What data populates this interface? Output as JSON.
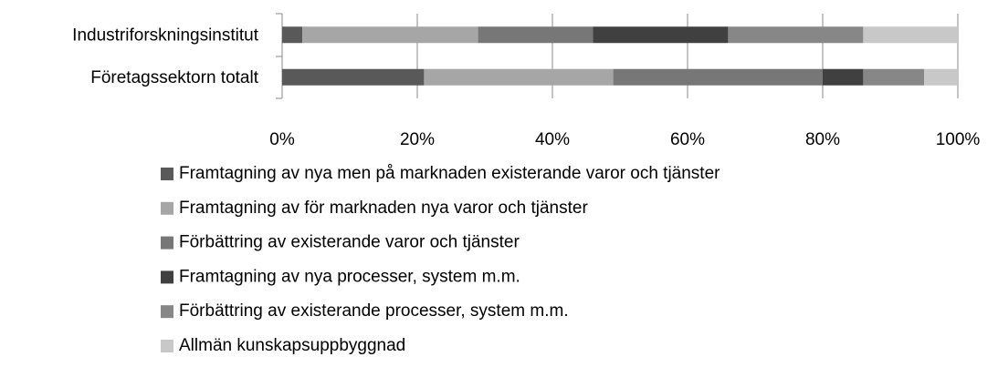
{
  "chart_data": {
    "type": "bar",
    "orientation": "horizontal",
    "stacked": true,
    "categories": [
      "Industriforskningsinstitut",
      "Företagssektorn totalt"
    ],
    "series": [
      {
        "name": "Framtagning av nya men på marknaden existerande varor och tjänster",
        "color": "#595959",
        "values": [
          3,
          21
        ]
      },
      {
        "name": "Framtagning av för marknaden nya varor och tjänster",
        "color": "#a6a6a6",
        "values": [
          26,
          28
        ]
      },
      {
        "name": "Förbättring av existerande varor och tjänster",
        "color": "#777777",
        "values": [
          17,
          31
        ]
      },
      {
        "name": "Framtagning av nya processer, system m.m.",
        "color": "#404040",
        "values": [
          20,
          6
        ]
      },
      {
        "name": "Förbättring av existerande processer, system m.m.",
        "color": "#878787",
        "values": [
          20,
          9
        ]
      },
      {
        "name": "Allmän kunskapsuppbyggnad",
        "color": "#c8c8c8",
        "values": [
          14,
          5
        ]
      }
    ],
    "xlim": [
      0,
      100
    ],
    "xticks": [
      {
        "value": 0,
        "label": "0%"
      },
      {
        "value": 20,
        "label": "20%"
      },
      {
        "value": 40,
        "label": "40%"
      },
      {
        "value": 60,
        "label": "60%"
      },
      {
        "value": 80,
        "label": "80%"
      },
      {
        "value": 100,
        "label": "100%"
      }
    ],
    "grid": true,
    "legend": "bottom"
  }
}
